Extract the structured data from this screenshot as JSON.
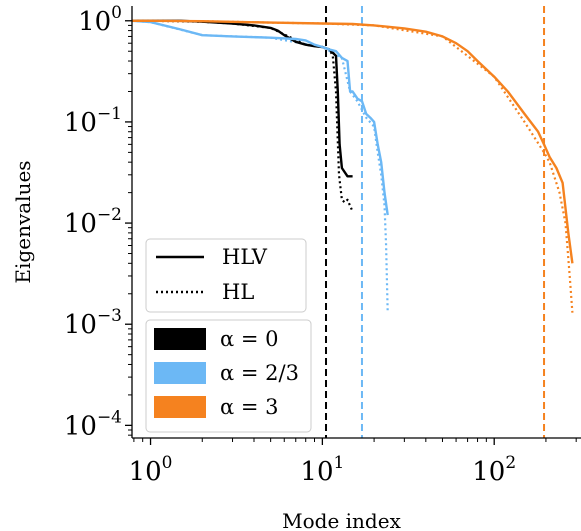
{
  "chart_data": {
    "type": "line",
    "title": "",
    "xlabel": "Mode index",
    "ylabel": "Eigenvalues",
    "xscale": "log",
    "yscale": "log",
    "xlim": [
      0.78,
      320
    ],
    "ylim": [
      7.5e-05,
      1.4
    ],
    "grid": false,
    "legend_placement": "lower-left",
    "x_ticks": [
      {
        "value": 1,
        "base": "10",
        "exp": "0"
      },
      {
        "value": 10,
        "base": "10",
        "exp": "1"
      },
      {
        "value": 100,
        "base": "10",
        "exp": "2"
      }
    ],
    "y_ticks": [
      {
        "value": 1,
        "base": "10",
        "exp": "0"
      },
      {
        "value": 0.1,
        "base": "10",
        "exp": "−1"
      },
      {
        "value": 0.01,
        "base": "10",
        "exp": "−2"
      },
      {
        "value": 0.001,
        "base": "10",
        "exp": "−3"
      },
      {
        "value": 0.0001,
        "base": "10",
        "exp": "−4"
      }
    ],
    "legend_styles": [
      {
        "label": "HLV",
        "dash": "solid"
      },
      {
        "label": "HL",
        "dash": "dotted"
      }
    ],
    "legend_colors": [
      {
        "label": "α = 0",
        "color": "#000000"
      },
      {
        "label": "α = 2/3",
        "color": "#6cb8f5"
      },
      {
        "label": "α = 3",
        "color": "#f5821f"
      }
    ],
    "vlines": [
      {
        "x": 10.5,
        "color": "#000000"
      },
      {
        "x": 17,
        "color": "#6cb8f5"
      },
      {
        "x": 195,
        "color": "#f5821f"
      }
    ],
    "series": [
      {
        "name": "α = 0 HLV",
        "color": "#000000",
        "dash": "solid",
        "x": [
          0.78,
          1,
          1.5,
          2,
          3,
          4,
          5,
          5.5,
          6,
          7,
          8,
          9,
          10,
          11,
          12,
          12.3,
          12.6,
          13,
          14,
          15
        ],
        "y": [
          1.0,
          1.0,
          1.0,
          0.98,
          0.94,
          0.9,
          0.85,
          0.8,
          0.72,
          0.62,
          0.58,
          0.56,
          0.55,
          0.52,
          0.45,
          0.2,
          0.06,
          0.035,
          0.029,
          0.029
        ]
      },
      {
        "name": "α = 0 HL",
        "color": "#000000",
        "dash": "dotted",
        "x": [
          0.78,
          1,
          2,
          3,
          5,
          8,
          10,
          11,
          11.5,
          12,
          12.5,
          13,
          13.5,
          14,
          15
        ],
        "y": [
          1.0,
          1.0,
          0.98,
          0.94,
          0.85,
          0.58,
          0.55,
          0.52,
          0.45,
          0.2,
          0.03,
          0.017,
          0.016,
          0.017,
          0.013
        ]
      },
      {
        "name": "α = 2/3 HLV",
        "color": "#6cb8f5",
        "dash": "solid",
        "x": [
          0.78,
          1,
          1.5,
          2,
          3,
          5,
          7,
          8,
          9,
          10,
          11,
          12,
          13,
          14,
          14.5,
          15,
          16,
          17,
          18,
          19,
          20,
          21,
          22,
          23,
          24
        ],
        "y": [
          1.0,
          0.97,
          0.82,
          0.72,
          0.7,
          0.68,
          0.66,
          0.64,
          0.58,
          0.55,
          0.52,
          0.5,
          0.43,
          0.4,
          0.2,
          0.2,
          0.17,
          0.16,
          0.12,
          0.11,
          0.1,
          0.06,
          0.04,
          0.02,
          0.012
        ]
      },
      {
        "name": "α = 2/3 HL",
        "color": "#6cb8f5",
        "dash": "dotted",
        "x": [
          0.78,
          1,
          2,
          5,
          10,
          13,
          14.5,
          16,
          18,
          20,
          21,
          22,
          23,
          23.5,
          24
        ],
        "y": [
          1.0,
          0.97,
          0.72,
          0.68,
          0.55,
          0.43,
          0.2,
          0.16,
          0.11,
          0.09,
          0.05,
          0.03,
          0.015,
          0.006,
          0.0013
        ]
      },
      {
        "name": "α = 3 HLV",
        "color": "#f5821f",
        "dash": "solid",
        "x": [
          0.78,
          1,
          2,
          5,
          10,
          15,
          20,
          30,
          40,
          50,
          60,
          70,
          80,
          100,
          120,
          150,
          180,
          195,
          210,
          230,
          250,
          270,
          285
        ],
        "y": [
          1.0,
          1.0,
          0.99,
          0.96,
          0.94,
          0.93,
          0.9,
          0.84,
          0.78,
          0.7,
          0.6,
          0.5,
          0.4,
          0.28,
          0.2,
          0.12,
          0.08,
          0.06,
          0.045,
          0.035,
          0.025,
          0.008,
          0.004
        ]
      },
      {
        "name": "α = 3 HL",
        "color": "#f5821f",
        "dash": "dotted",
        "x": [
          0.78,
          1,
          2,
          5,
          10,
          20,
          50,
          100,
          150,
          195,
          210,
          240,
          260,
          275,
          285
        ],
        "y": [
          1.0,
          1.0,
          0.99,
          0.96,
          0.94,
          0.9,
          0.7,
          0.28,
          0.1,
          0.05,
          0.04,
          0.02,
          0.01,
          0.003,
          0.0013
        ]
      }
    ]
  }
}
